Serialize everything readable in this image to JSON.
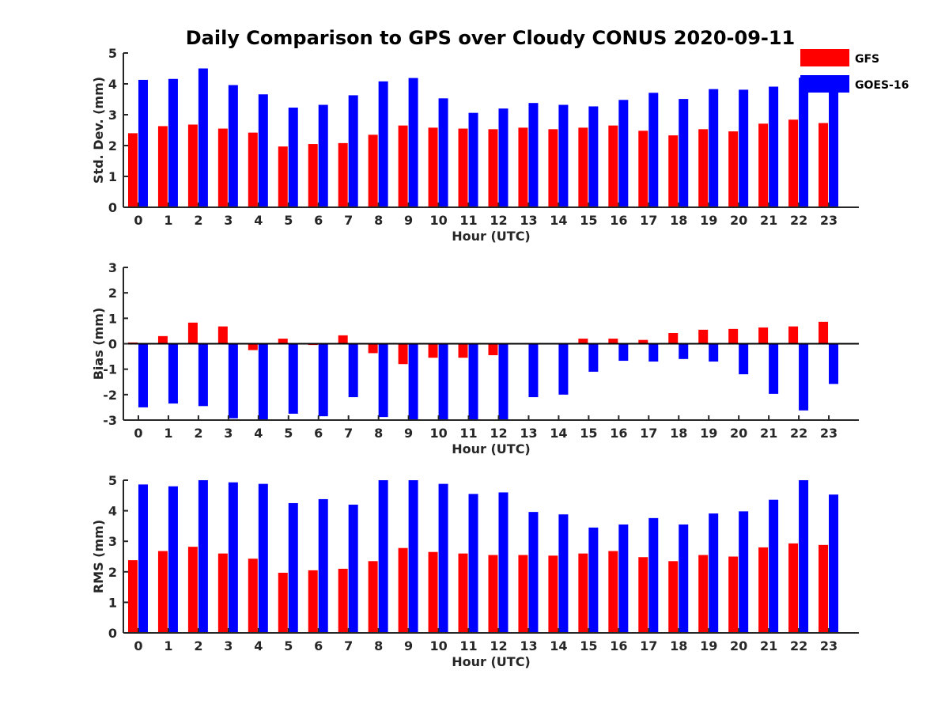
{
  "chart_data": {
    "type": "bar",
    "title": "Daily Comparison to GPS over Cloudy CONUS 2020-09-11",
    "colors": {
      "GFS": "#ff0000",
      "GOES-16": "#0000ff"
    },
    "legend": {
      "placement": "top-right",
      "entries": [
        "GFS",
        "GOES-16"
      ]
    },
    "grid": false,
    "panels": [
      {
        "ylabel": "Std. Dev. (mm)",
        "xlabel": "Hour (UTC)",
        "ylim": [
          0,
          5
        ],
        "yticks": [
          0,
          1,
          2,
          3,
          4,
          5
        ],
        "x": [
          0,
          1,
          2,
          3,
          4,
          5,
          6,
          7,
          8,
          9,
          10,
          11,
          12,
          13,
          14,
          15,
          16,
          17,
          18,
          19,
          20,
          21,
          22,
          23
        ],
        "series": [
          {
            "name": "GFS",
            "values": [
              2.4,
              2.63,
              2.68,
              2.55,
              2.42,
              1.97,
              2.05,
              2.08,
              2.35,
              2.65,
              2.58,
              2.55,
              2.53,
              2.58,
              2.53,
              2.58,
              2.65,
              2.48,
              2.33,
              2.53,
              2.46,
              2.71,
              2.84,
              2.73
            ]
          },
          {
            "name": "GOES-16",
            "values": [
              4.13,
              4.16,
              4.5,
              3.96,
              3.66,
              3.23,
              3.32,
              3.63,
              4.08,
              4.19,
              3.53,
              3.06,
              3.2,
              3.38,
              3.32,
              3.27,
              3.48,
              3.71,
              3.51,
              3.83,
              3.81,
              3.91,
              4.2,
              4.1
            ]
          }
        ]
      },
      {
        "ylabel": "Bias (mm)",
        "xlabel": "Hour (UTC)",
        "ylim": [
          -3,
          3
        ],
        "yticks": [
          -3,
          -2,
          -1,
          0,
          1,
          2,
          3
        ],
        "x": [
          0,
          1,
          2,
          3,
          4,
          5,
          6,
          7,
          8,
          9,
          10,
          11,
          12,
          13,
          14,
          15,
          16,
          17,
          18,
          19,
          20,
          21,
          22,
          23
        ],
        "series": [
          {
            "name": "GFS",
            "values": [
              0.05,
              0.3,
              0.83,
              0.68,
              -0.25,
              0.2,
              -0.05,
              0.33,
              -0.37,
              -0.8,
              -0.55,
              -0.55,
              -0.45,
              0.0,
              0.0,
              0.2,
              0.2,
              0.15,
              0.42,
              0.55,
              0.58,
              0.64,
              0.68,
              0.86
            ]
          },
          {
            "name": "GOES-16",
            "values": [
              -2.5,
              -2.35,
              -2.45,
              -2.93,
              -3.0,
              -2.75,
              -2.85,
              -2.1,
              -2.88,
              -3.0,
              -3.0,
              -3.0,
              -3.0,
              -2.1,
              -2.0,
              -1.1,
              -0.67,
              -0.7,
              -0.6,
              -0.7,
              -1.2,
              -1.97,
              -2.62,
              -1.58
            ]
          }
        ]
      },
      {
        "ylabel": "RMS (mm)",
        "xlabel": "Hour (UTC)",
        "ylim": [
          0,
          5
        ],
        "yticks": [
          0,
          1,
          2,
          3,
          4,
          5
        ],
        "x": [
          0,
          1,
          2,
          3,
          4,
          5,
          6,
          7,
          8,
          9,
          10,
          11,
          12,
          13,
          14,
          15,
          16,
          17,
          18,
          19,
          20,
          21,
          22,
          23
        ],
        "series": [
          {
            "name": "GFS",
            "values": [
              2.38,
              2.68,
              2.82,
              2.6,
              2.43,
              1.97,
              2.05,
              2.1,
              2.35,
              2.78,
              2.65,
              2.6,
              2.55,
              2.55,
              2.53,
              2.6,
              2.68,
              2.48,
              2.35,
              2.55,
              2.5,
              2.8,
              2.93,
              2.88
            ]
          },
          {
            "name": "GOES-16",
            "values": [
              4.86,
              4.8,
              5.0,
              4.93,
              4.88,
              4.25,
              4.38,
              4.2,
              5.0,
              5.0,
              4.88,
              4.55,
              4.6,
              3.96,
              3.88,
              3.45,
              3.55,
              3.76,
              3.55,
              3.91,
              3.98,
              4.36,
              5.0,
              4.53
            ]
          }
        ]
      }
    ]
  }
}
